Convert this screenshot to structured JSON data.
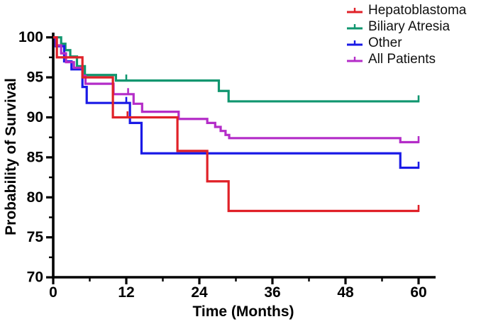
{
  "chart_data": {
    "type": "line",
    "subtype": "kaplan-meier-step",
    "title": "",
    "xlabel": "Time (Months)",
    "ylabel": "Probability of Survival",
    "xlim": [
      0,
      60
    ],
    "ylim": [
      70,
      100
    ],
    "x_ticks_major": [
      0,
      12,
      24,
      36,
      48,
      60
    ],
    "x_ticks_minor": [
      6,
      18,
      30,
      42,
      54
    ],
    "y_ticks_major": [
      100,
      95,
      90,
      85,
      80,
      75,
      70
    ],
    "y_ticks_minor": [
      97.5,
      92.5,
      87.5,
      82.5,
      77.5,
      72.5
    ],
    "grid": false,
    "legend_position": "top-right",
    "axis_color": "#000000",
    "series": [
      {
        "name": "Biliary Atresia",
        "color": "#10966F",
        "steps": [
          [
            0,
            100
          ],
          [
            1.3,
            99.2
          ],
          [
            2.0,
            98.4
          ],
          [
            2.8,
            97.6
          ],
          [
            3.9,
            96.4
          ],
          [
            5.2,
            95.3
          ],
          [
            10.3,
            94.6
          ],
          [
            27.2,
            93.3
          ],
          [
            28.8,
            92.0
          ],
          [
            60,
            92.0
          ]
        ],
        "censor_ticks": [
          12.0
        ],
        "end_tick": 60
      },
      {
        "name": "Other",
        "color": "#1A1AE6",
        "steps": [
          [
            0,
            100
          ],
          [
            0.4,
            98.9
          ],
          [
            1.8,
            97.0
          ],
          [
            3.0,
            96.0
          ],
          [
            4.8,
            93.8
          ],
          [
            5.5,
            91.8
          ],
          [
            12.6,
            89.3
          ],
          [
            14.5,
            85.5
          ],
          [
            57,
            83.7
          ],
          [
            60,
            83.7
          ]
        ],
        "censor_ticks": [
          12.0
        ],
        "end_tick": 60
      },
      {
        "name": "All Patients",
        "color": "#B42DC8",
        "steps": [
          [
            0,
            100
          ],
          [
            0.5,
            99.0
          ],
          [
            1.3,
            98.0
          ],
          [
            2.1,
            96.9
          ],
          [
            3.4,
            96.2
          ],
          [
            4.8,
            95.2
          ],
          [
            5.3,
            94.2
          ],
          [
            9.9,
            92.9
          ],
          [
            13.2,
            91.7
          ],
          [
            14.6,
            90.7
          ],
          [
            20.6,
            89.8
          ],
          [
            25.3,
            89.3
          ],
          [
            26.6,
            88.8
          ],
          [
            27.5,
            88.3
          ],
          [
            28.3,
            87.8
          ],
          [
            28.9,
            87.4
          ],
          [
            57,
            86.9
          ],
          [
            60,
            86.9
          ]
        ],
        "censor_ticks": [
          12.3
        ],
        "end_tick": 60
      },
      {
        "name": "Hepatoblastoma",
        "color": "#E02128",
        "steps": [
          [
            0,
            100
          ],
          [
            0.6,
            97.5
          ],
          [
            4.8,
            95.0
          ],
          [
            9.8,
            90.0
          ],
          [
            20.4,
            85.8
          ],
          [
            25.3,
            82.0
          ],
          [
            28.8,
            78.3
          ],
          [
            60,
            78.3
          ]
        ],
        "censor_ticks": [
          12.2
        ],
        "end_tick": 60
      }
    ],
    "legend_order": [
      "Hepatoblastoma",
      "Biliary Atresia",
      "Other",
      "All Patients"
    ]
  }
}
